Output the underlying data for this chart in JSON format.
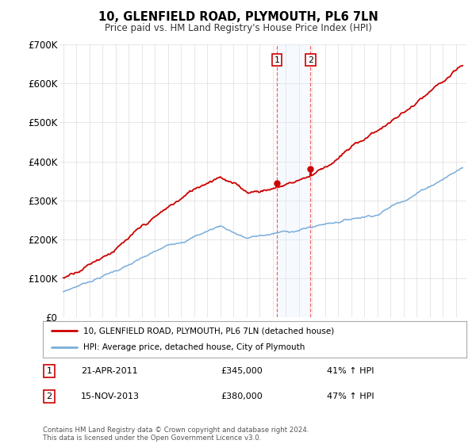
{
  "title": "10, GLENFIELD ROAD, PLYMOUTH, PL6 7LN",
  "subtitle": "Price paid vs. HM Land Registry's House Price Index (HPI)",
  "ylim": [
    0,
    700000
  ],
  "yticks": [
    0,
    100000,
    200000,
    300000,
    400000,
    500000,
    600000,
    700000
  ],
  "ytick_labels": [
    "£0",
    "£100K",
    "£200K",
    "£300K",
    "£400K",
    "£500K",
    "£600K",
    "£700K"
  ],
  "sale1_date": 2011.31,
  "sale1_price": 345000,
  "sale2_date": 2013.88,
  "sale2_price": 380000,
  "sale1_text": "21-APR-2011",
  "sale1_amount": "£345,000",
  "sale1_pct": "41% ↑ HPI",
  "sale2_text": "15-NOV-2013",
  "sale2_amount": "£380,000",
  "sale2_pct": "47% ↑ HPI",
  "hpi_color": "#7aaddb",
  "price_color": "#cc0000",
  "shade_color": "#ddeeff",
  "legend_house": "10, GLENFIELD ROAD, PLYMOUTH, PL6 7LN (detached house)",
  "legend_hpi": "HPI: Average price, detached house, City of Plymouth",
  "footnote": "Contains HM Land Registry data © Crown copyright and database right 2024.\nThis data is licensed under the Open Government Licence v3.0.",
  "bg_color": "#ffffff",
  "grid_color": "#dddddd",
  "xmin": 1994.7,
  "xmax": 2025.8,
  "label_box_color": "#cc0000"
}
